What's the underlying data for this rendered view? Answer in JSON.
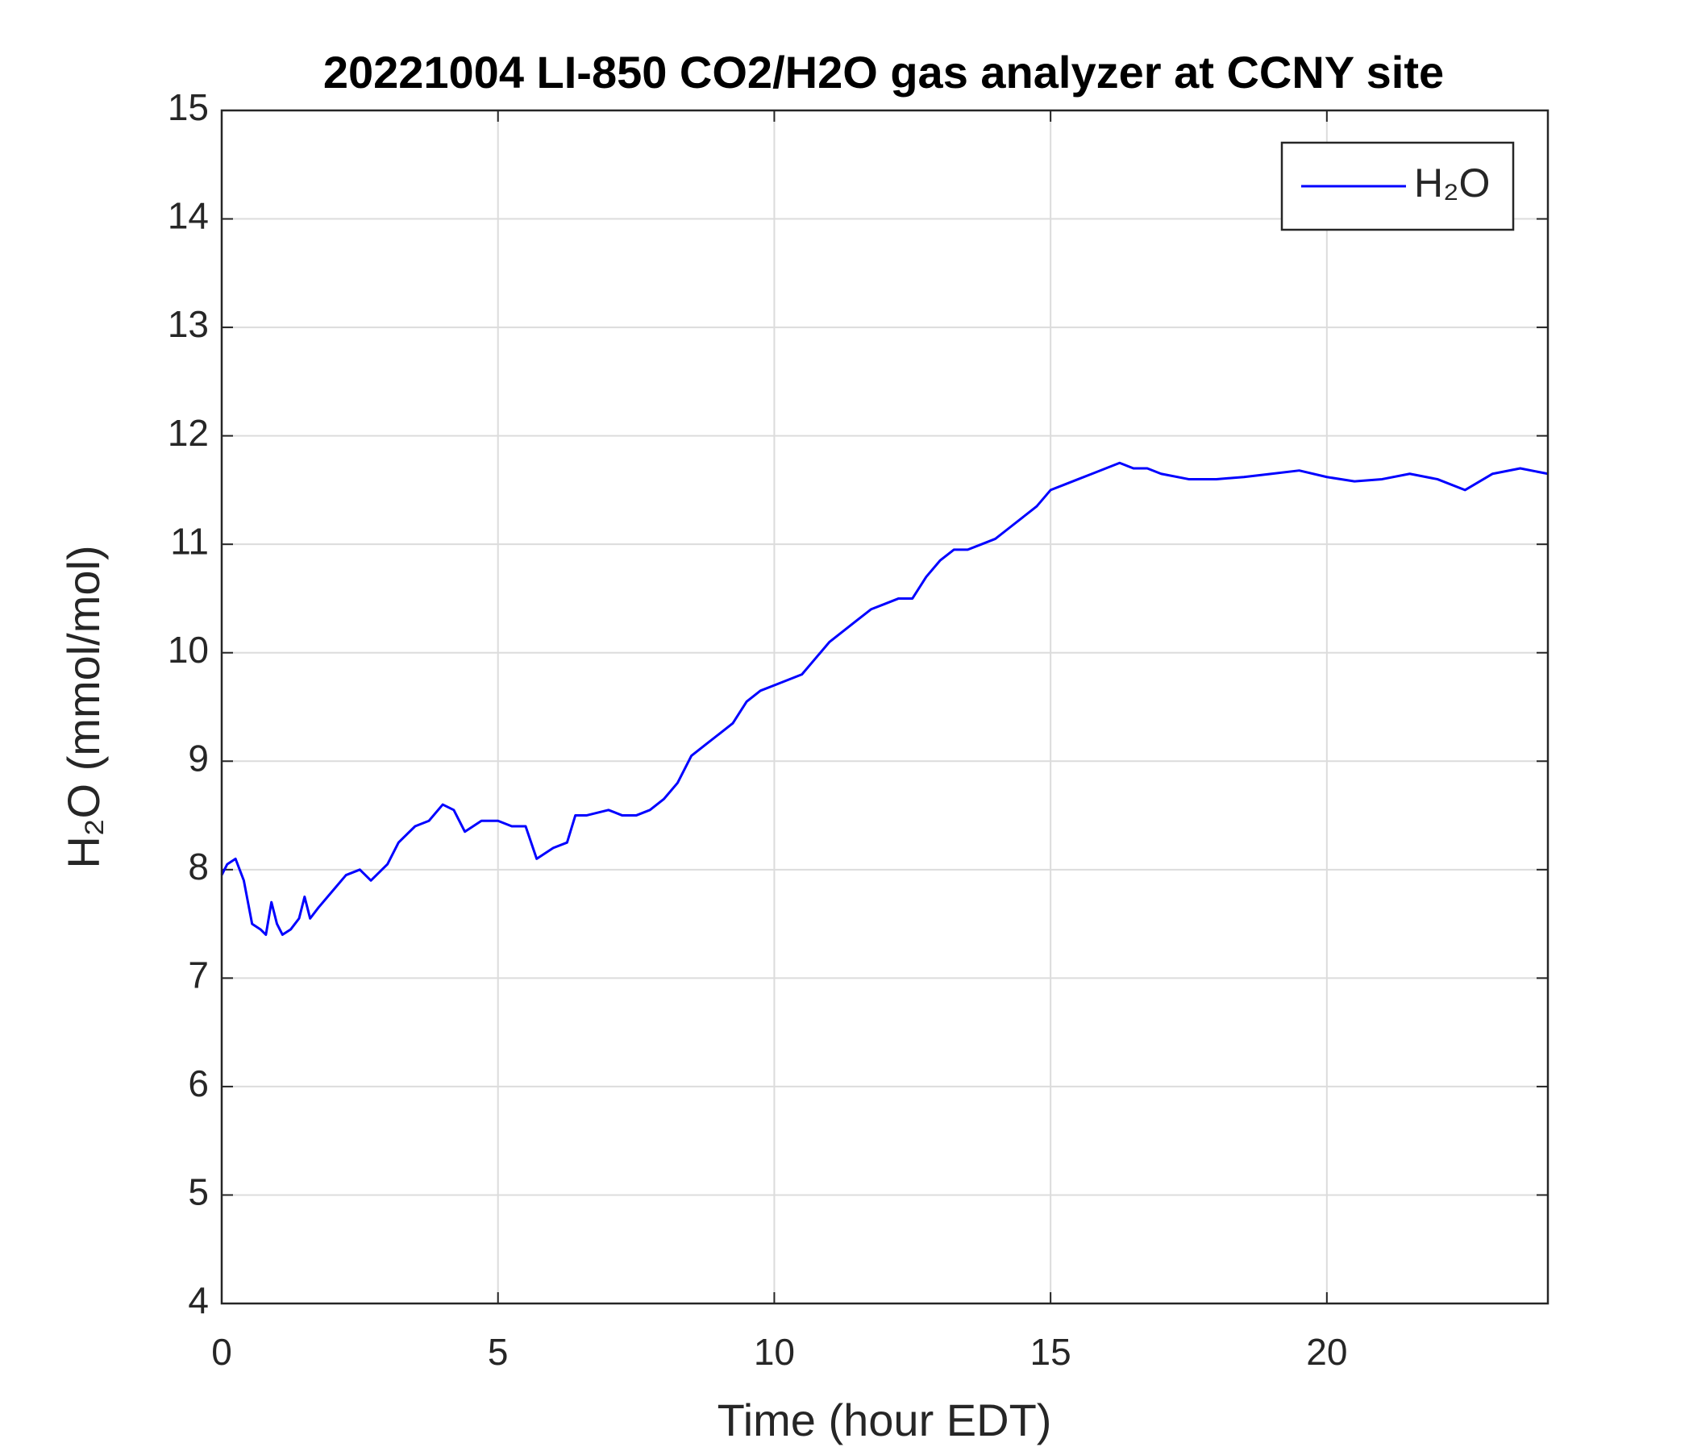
{
  "chart_data": {
    "type": "line",
    "title": "20221004 LI-850 CO2/H2O gas analyzer at CCNY site",
    "xlabel": "Time (hour EDT)",
    "ylabel": "H₂O (mmol/mol)",
    "x": [
      0,
      0.1,
      0.25,
      0.4,
      0.55,
      0.7,
      0.8,
      0.9,
      1.0,
      1.1,
      1.25,
      1.4,
      1.5,
      1.6,
      1.75,
      2.0,
      2.25,
      2.5,
      2.7,
      3.0,
      3.2,
      3.5,
      3.75,
      4.0,
      4.2,
      4.4,
      4.7,
      5.0,
      5.25,
      5.5,
      5.7,
      6.0,
      6.25,
      6.4,
      6.6,
      7.0,
      7.25,
      7.5,
      7.75,
      8.0,
      8.25,
      8.5,
      8.75,
      9.0,
      9.25,
      9.5,
      9.75,
      10.0,
      10.25,
      10.5,
      10.75,
      11.0,
      11.25,
      11.5,
      11.75,
      12.0,
      12.25,
      12.5,
      12.75,
      13.0,
      13.25,
      13.5,
      13.75,
      14.0,
      14.25,
      14.5,
      14.75,
      15.0,
      15.25,
      15.5,
      15.75,
      16.0,
      16.25,
      16.5,
      16.75,
      17.0,
      17.5,
      18.0,
      18.5,
      19.0,
      19.5,
      20.0,
      20.5,
      21.0,
      21.5,
      22.0,
      22.5,
      23.0,
      23.5,
      24.0
    ],
    "series": [
      {
        "name": "H₂O",
        "color": "#0000ff",
        "values": [
          7.95,
          8.05,
          8.1,
          7.9,
          7.5,
          7.45,
          7.4,
          7.7,
          7.5,
          7.4,
          7.45,
          7.55,
          7.75,
          7.55,
          7.65,
          7.8,
          7.95,
          8.0,
          7.9,
          8.05,
          8.25,
          8.4,
          8.45,
          8.6,
          8.55,
          8.35,
          8.45,
          8.45,
          8.4,
          8.4,
          8.1,
          8.2,
          8.25,
          8.5,
          8.5,
          8.55,
          8.5,
          8.5,
          8.55,
          8.65,
          8.8,
          9.05,
          9.15,
          9.25,
          9.35,
          9.55,
          9.65,
          9.7,
          9.75,
          9.8,
          9.95,
          10.1,
          10.2,
          10.3,
          10.4,
          10.45,
          10.5,
          10.5,
          10.7,
          10.85,
          10.95,
          10.95,
          11.0,
          11.05,
          11.15,
          11.25,
          11.35,
          11.5,
          11.55,
          11.6,
          11.65,
          11.7,
          11.75,
          11.7,
          11.7,
          11.65,
          11.6,
          11.6,
          11.62,
          11.65,
          11.68,
          11.62,
          11.58,
          11.6,
          11.65,
          11.6,
          11.5,
          11.65,
          11.7,
          11.65
        ]
      }
    ],
    "xlim": [
      0,
      24
    ],
    "xticks": [
      0,
      5,
      10,
      15,
      20
    ],
    "ylim": [
      4,
      15
    ],
    "yticks": [
      4,
      5,
      6,
      7,
      8,
      9,
      10,
      11,
      12,
      13,
      14,
      15
    ],
    "grid": true,
    "legend": "upper right"
  }
}
